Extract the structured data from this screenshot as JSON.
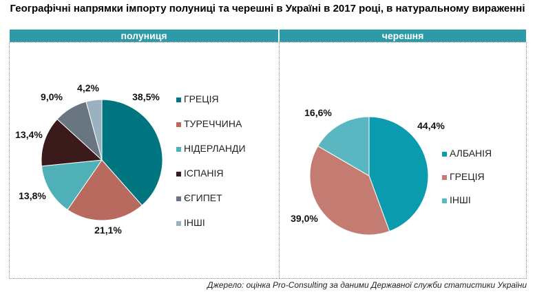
{
  "title": "Географічні напрямки імпорту полуниці та черешні в Україні в 2017 році, в натуральному вираженні",
  "source": "Джерело: оцінка Pro-Consulting за даними Державної служби статистики України",
  "chart_data": [
    {
      "type": "pie",
      "title": "полуниця",
      "categories": [
        "ГРЕЦІЯ",
        "ТУРЕЧЧИНА",
        "НІДЕРЛАНДИ",
        "ІСПАНІЯ",
        "ЄГИПЕТ",
        "ІНШІ"
      ],
      "values": [
        38.5,
        21.1,
        13.8,
        13.4,
        9.0,
        4.2
      ],
      "labels": [
        "38,5%",
        "21,1%",
        "13,8%",
        "13,4%",
        "9,0%",
        "4,2%"
      ],
      "colors": [
        "#00747f",
        "#b96a5f",
        "#4fb0b8",
        "#3b1a1c",
        "#6a7582",
        "#9ab2bf"
      ],
      "legend": "right"
    },
    {
      "type": "pie",
      "title": "черешня",
      "categories": [
        "АЛБАНІЯ",
        "ГРЕЦІЯ",
        "ІНШІ"
      ],
      "values": [
        44.4,
        39.0,
        16.6
      ],
      "labels": [
        "44,4%",
        "39,0%",
        "16,6%"
      ],
      "colors": [
        "#0a9cae",
        "#c47c72",
        "#5ab7c2"
      ],
      "legend": "right"
    }
  ]
}
